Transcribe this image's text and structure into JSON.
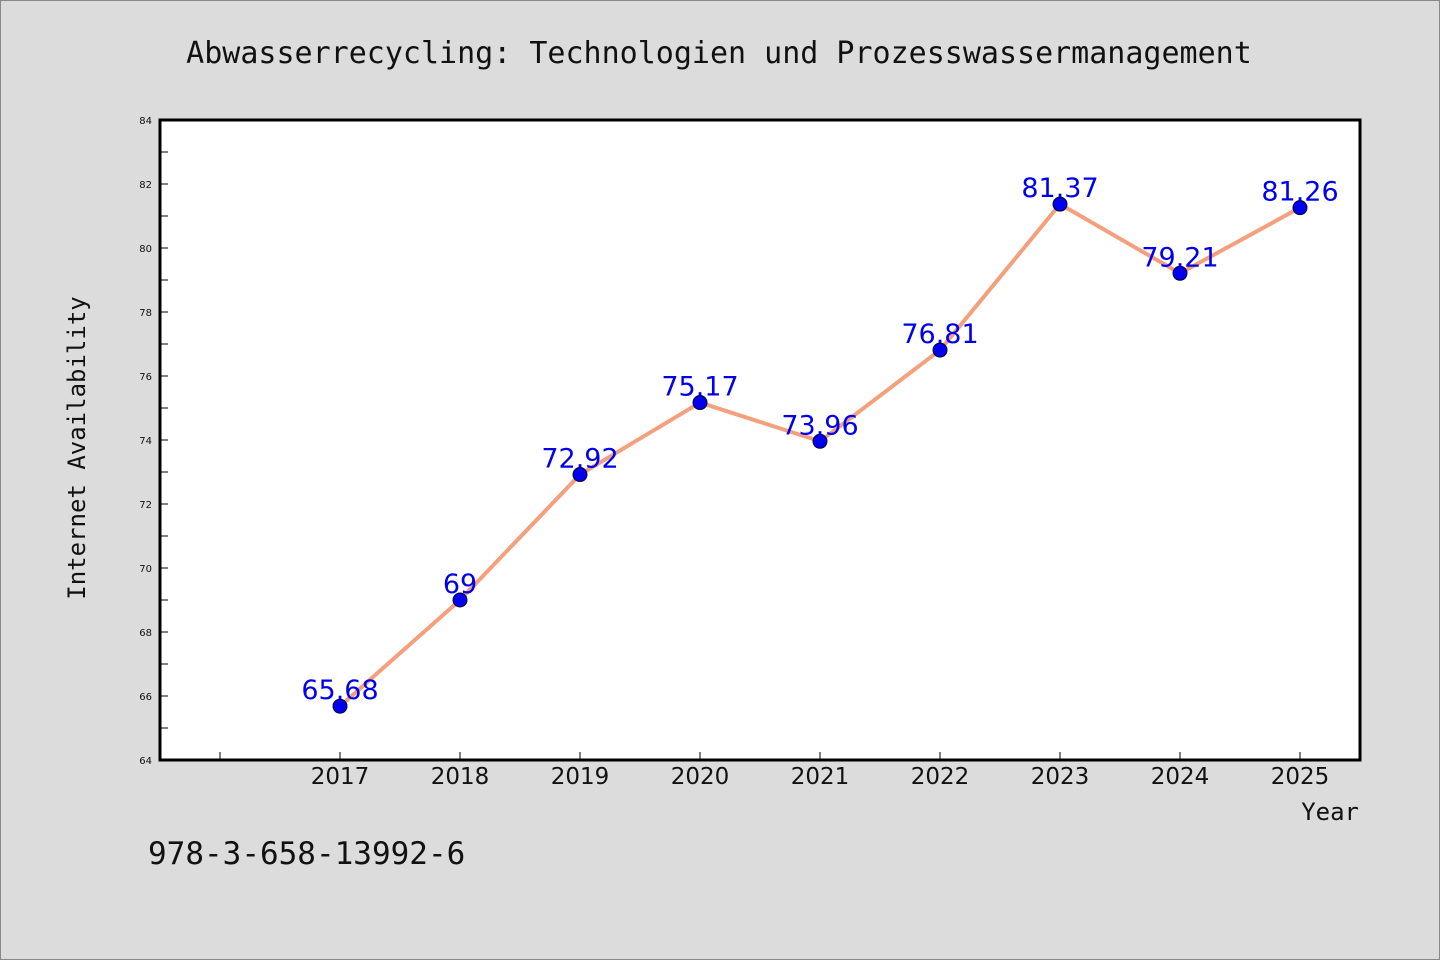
{
  "chart_data": {
    "type": "line",
    "title": "Abwasserrecycling: Technologien und Prozesswassermanagement",
    "xlabel": "Year",
    "ylabel": "Internet Availability",
    "categories": [
      "2017",
      "2018",
      "2019",
      "2020",
      "2021",
      "2022",
      "2023",
      "2024",
      "2025"
    ],
    "series": [
      {
        "values": [
          65.68,
          69,
          72.92,
          75.17,
          73.96,
          76.81,
          81.37,
          79.21,
          81.26
        ],
        "labels": [
          "65.68",
          "69",
          "72.92",
          "75.17",
          "73.96",
          "76.81",
          "81.37",
          "79.21",
          "81.26"
        ],
        "line_color": "#f4a07e",
        "marker_color": "#0000ee",
        "label_color": "#0000ee"
      }
    ],
    "yticks": [
      "64",
      "66",
      "68",
      "70",
      "72",
      "74",
      "76",
      "78",
      "80",
      "82",
      "84"
    ],
    "ylim": [
      64,
      84
    ],
    "xlim": [
      2015.5,
      2025.5
    ],
    "grid": false,
    "legend": "none"
  },
  "footer": {
    "isbn": "978-3-658-13992-6"
  },
  "colors": {
    "background": "#dcdcdc",
    "plot_area": "#ffffff",
    "axes": "#000000"
  }
}
